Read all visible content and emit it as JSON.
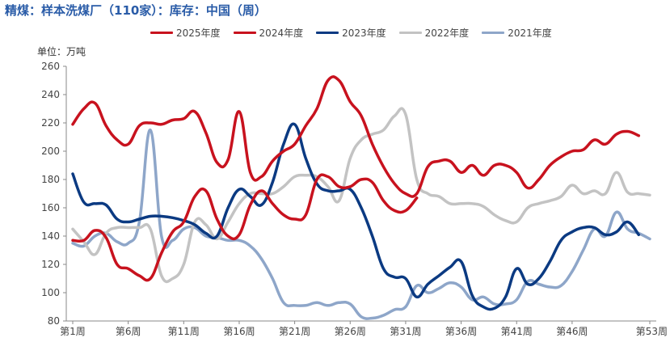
{
  "title": "精煤：样本洗煤厂（110家）：库存：中国（周）",
  "unit_label": "单位：万吨",
  "colors": {
    "title": "#2a5ca8",
    "2025": "#c8121e",
    "2024": "#c8121e",
    "2023": "#0b3a82",
    "2022": "#c3c3c3",
    "2021": "#8ea6c9"
  },
  "chart_data": {
    "type": "line",
    "title": "精煤：样本洗煤厂（110家）：库存：中国（周）",
    "ylabel": "单位：万吨",
    "xlabel": "",
    "ylim": [
      80,
      260
    ],
    "yticks": [
      80,
      100,
      120,
      140,
      160,
      180,
      200,
      220,
      240,
      260
    ],
    "xlim": [
      1,
      53
    ],
    "xticks": [
      {
        "week": 1,
        "label": "第1周"
      },
      {
        "week": 6,
        "label": "第6周"
      },
      {
        "week": 11,
        "label": "第11周"
      },
      {
        "week": 16,
        "label": "第16周"
      },
      {
        "week": 21,
        "label": "第21周"
      },
      {
        "week": 26,
        "label": "第26周"
      },
      {
        "week": 31,
        "label": "第31周"
      },
      {
        "week": 36,
        "label": "第36周"
      },
      {
        "week": 41,
        "label": "第41周"
      },
      {
        "week": 46,
        "label": "第46周"
      },
      {
        "week": 53,
        "label": "第53周"
      }
    ],
    "grid": false,
    "legend_position": "top",
    "series": [
      {
        "name": "2025年度",
        "key": "2025",
        "width": 3.5,
        "points": [
          [
            1,
            137
          ],
          [
            2,
            137
          ],
          [
            3,
            144
          ],
          [
            4,
            139
          ],
          [
            5,
            120
          ],
          [
            6,
            117
          ],
          [
            7,
            112
          ],
          [
            8,
            110
          ],
          [
            9,
            128
          ],
          [
            10,
            143
          ],
          [
            11,
            150
          ],
          [
            12,
            168
          ],
          [
            13,
            172
          ],
          [
            14,
            152
          ],
          [
            15,
            140
          ],
          [
            16,
            141
          ],
          [
            17,
            162
          ],
          [
            18,
            172
          ],
          [
            19,
            163
          ],
          [
            20,
            155
          ],
          [
            21,
            152
          ],
          [
            22,
            155
          ],
          [
            23,
            180
          ],
          [
            24,
            182
          ],
          [
            25,
            175
          ],
          [
            26,
            175
          ],
          [
            27,
            180
          ],
          [
            28,
            178
          ],
          [
            29,
            165
          ],
          [
            30,
            158
          ],
          [
            31,
            158
          ],
          [
            32,
            167
          ]
        ]
      },
      {
        "name": "2024年度",
        "key": "2024",
        "width": 3.5,
        "points": [
          [
            1,
            219
          ],
          [
            2,
            230
          ],
          [
            3,
            234
          ],
          [
            4,
            218
          ],
          [
            5,
            208
          ],
          [
            6,
            205
          ],
          [
            7,
            218
          ],
          [
            8,
            220
          ],
          [
            9,
            219
          ],
          [
            10,
            222
          ],
          [
            11,
            223
          ],
          [
            12,
            228
          ],
          [
            13,
            213
          ],
          [
            14,
            192
          ],
          [
            15,
            194
          ],
          [
            16,
            228
          ],
          [
            17,
            185
          ],
          [
            18,
            182
          ],
          [
            19,
            193
          ],
          [
            20,
            200
          ],
          [
            21,
            205
          ],
          [
            22,
            218
          ],
          [
            23,
            230
          ],
          [
            24,
            250
          ],
          [
            25,
            250
          ],
          [
            26,
            235
          ],
          [
            27,
            225
          ],
          [
            28,
            205
          ],
          [
            29,
            189
          ],
          [
            30,
            177
          ],
          [
            31,
            170
          ],
          [
            32,
            170
          ],
          [
            33,
            189
          ],
          [
            34,
            193
          ],
          [
            35,
            193
          ],
          [
            36,
            185
          ],
          [
            37,
            190
          ],
          [
            38,
            183
          ],
          [
            39,
            190
          ],
          [
            40,
            190
          ],
          [
            41,
            185
          ],
          [
            42,
            174
          ],
          [
            43,
            180
          ],
          [
            44,
            190
          ],
          [
            45,
            196
          ],
          [
            46,
            200
          ],
          [
            47,
            201
          ],
          [
            48,
            208
          ],
          [
            49,
            205
          ],
          [
            50,
            212
          ],
          [
            51,
            214
          ],
          [
            52,
            211
          ]
        ]
      },
      {
        "name": "2023年度",
        "key": "2023",
        "width": 3.5,
        "points": [
          [
            1,
            184
          ],
          [
            2,
            164
          ],
          [
            3,
            163
          ],
          [
            4,
            162
          ],
          [
            5,
            152
          ],
          [
            6,
            150
          ],
          [
            7,
            152
          ],
          [
            8,
            154
          ],
          [
            9,
            154
          ],
          [
            10,
            153
          ],
          [
            11,
            151
          ],
          [
            12,
            148
          ],
          [
            13,
            142
          ],
          [
            14,
            140
          ],
          [
            15,
            160
          ],
          [
            16,
            173
          ],
          [
            17,
            168
          ],
          [
            18,
            162
          ],
          [
            19,
            178
          ],
          [
            20,
            205
          ],
          [
            21,
            219
          ],
          [
            22,
            195
          ],
          [
            23,
            177
          ],
          [
            24,
            172
          ],
          [
            25,
            172
          ],
          [
            26,
            173
          ],
          [
            27,
            160
          ],
          [
            28,
            140
          ],
          [
            29,
            117
          ],
          [
            30,
            111
          ],
          [
            31,
            110
          ],
          [
            32,
            97
          ],
          [
            33,
            106
          ],
          [
            34,
            112
          ],
          [
            35,
            118
          ],
          [
            36,
            122
          ],
          [
            37,
            98
          ],
          [
            38,
            90
          ],
          [
            39,
            89
          ],
          [
            40,
            97
          ],
          [
            41,
            117
          ],
          [
            42,
            106
          ],
          [
            43,
            110
          ],
          [
            44,
            122
          ],
          [
            45,
            137
          ],
          [
            46,
            143
          ],
          [
            47,
            146
          ],
          [
            48,
            146
          ],
          [
            49,
            141
          ],
          [
            50,
            143
          ],
          [
            51,
            150
          ],
          [
            52,
            141
          ]
        ]
      },
      {
        "name": "2022年度",
        "key": "2022",
        "width": 3.5,
        "points": [
          [
            1,
            145
          ],
          [
            2,
            136
          ],
          [
            3,
            127
          ],
          [
            4,
            142
          ],
          [
            5,
            146
          ],
          [
            6,
            146
          ],
          [
            7,
            146
          ],
          [
            8,
            145
          ],
          [
            9,
            112
          ],
          [
            10,
            110
          ],
          [
            11,
            120
          ],
          [
            12,
            150
          ],
          [
            13,
            148
          ],
          [
            14,
            138
          ],
          [
            15,
            150
          ],
          [
            16,
            163
          ],
          [
            17,
            170
          ],
          [
            18,
            170
          ],
          [
            19,
            170
          ],
          [
            20,
            175
          ],
          [
            21,
            182
          ],
          [
            22,
            183
          ],
          [
            23,
            182
          ],
          [
            24,
            175
          ],
          [
            25,
            165
          ],
          [
            26,
            195
          ],
          [
            27,
            208
          ],
          [
            28,
            212
          ],
          [
            29,
            215
          ],
          [
            30,
            225
          ],
          [
            31,
            226
          ],
          [
            32,
            180
          ],
          [
            33,
            170
          ],
          [
            34,
            168
          ],
          [
            35,
            163
          ],
          [
            36,
            163
          ],
          [
            37,
            163
          ],
          [
            38,
            161
          ],
          [
            39,
            155
          ],
          [
            40,
            151
          ],
          [
            41,
            150
          ],
          [
            42,
            160
          ],
          [
            43,
            163
          ],
          [
            44,
            165
          ],
          [
            45,
            168
          ],
          [
            46,
            176
          ],
          [
            47,
            170
          ],
          [
            48,
            172
          ],
          [
            49,
            170
          ],
          [
            50,
            185
          ],
          [
            51,
            171
          ],
          [
            52,
            170
          ],
          [
            53,
            169
          ]
        ]
      },
      {
        "name": "2021年度",
        "key": "2021",
        "width": 3.5,
        "points": [
          [
            1,
            135
          ],
          [
            2,
            133
          ],
          [
            3,
            140
          ],
          [
            4,
            142
          ],
          [
            5,
            136
          ],
          [
            6,
            135
          ],
          [
            7,
            150
          ],
          [
            8,
            215
          ],
          [
            9,
            140
          ],
          [
            10,
            137
          ],
          [
            11,
            145
          ],
          [
            12,
            146
          ],
          [
            13,
            140
          ],
          [
            14,
            139
          ],
          [
            15,
            137
          ],
          [
            16,
            137
          ],
          [
            17,
            133
          ],
          [
            18,
            124
          ],
          [
            19,
            110
          ],
          [
            20,
            93
          ],
          [
            21,
            91
          ],
          [
            22,
            91
          ],
          [
            23,
            93
          ],
          [
            24,
            91
          ],
          [
            25,
            93
          ],
          [
            26,
            92
          ],
          [
            27,
            83
          ],
          [
            28,
            82
          ],
          [
            29,
            84
          ],
          [
            30,
            88
          ],
          [
            31,
            90
          ],
          [
            32,
            105
          ],
          [
            33,
            100
          ],
          [
            34,
            103
          ],
          [
            35,
            107
          ],
          [
            36,
            104
          ],
          [
            37,
            95
          ],
          [
            38,
            97
          ],
          [
            39,
            92
          ],
          [
            40,
            92
          ],
          [
            41,
            95
          ],
          [
            42,
            108
          ],
          [
            43,
            106
          ],
          [
            44,
            104
          ],
          [
            45,
            105
          ],
          [
            46,
            115
          ],
          [
            47,
            130
          ],
          [
            48,
            145
          ],
          [
            49,
            140
          ],
          [
            50,
            157
          ],
          [
            51,
            145
          ],
          [
            52,
            142
          ],
          [
            53,
            138
          ]
        ]
      }
    ]
  }
}
